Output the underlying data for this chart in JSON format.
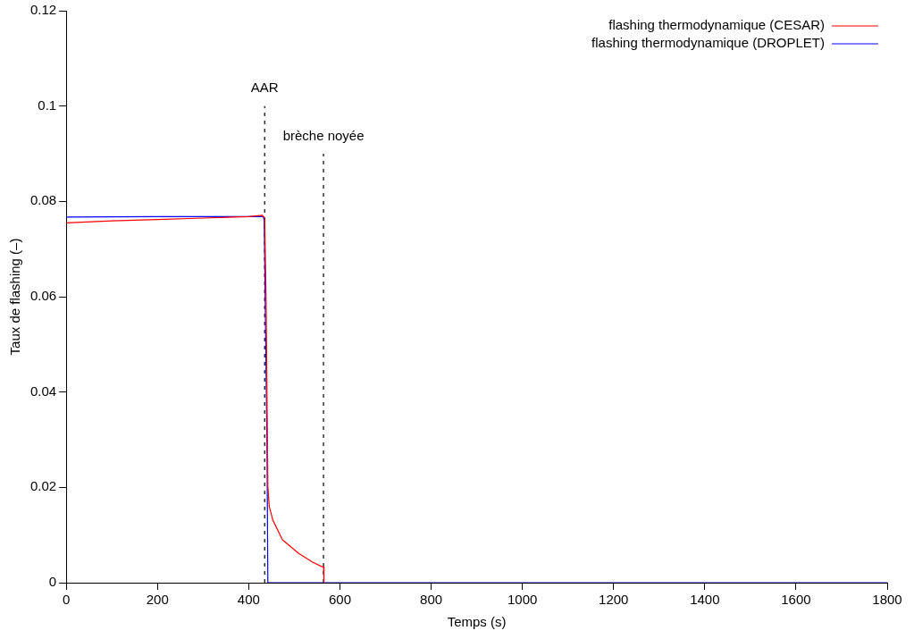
{
  "chart_data": {
    "type": "line",
    "xlabel": "Temps (s)",
    "ylabel": "Taux de flashing (–)",
    "xlim": [
      0,
      1800
    ],
    "xticks": [
      0,
      200,
      400,
      600,
      800,
      1000,
      1200,
      1400,
      1600,
      1800
    ],
    "ylim": [
      0,
      0.12
    ],
    "yticks": [
      0,
      0.02,
      0.04,
      0.06,
      0.08,
      0.1,
      0.12
    ],
    "grid": false,
    "legend": "top right",
    "marker": "none",
    "series": [
      {
        "name": "flashing thermodynamique (CESAR)",
        "color": "#ff0000",
        "x": [
          0,
          100,
          200,
          300,
          400,
          430,
          435,
          438,
          440,
          442,
          445,
          453,
          474,
          509,
          540,
          560,
          564,
          565
        ],
        "values": [
          0.0755,
          0.0759,
          0.0762,
          0.0765,
          0.0768,
          0.0771,
          0.0765,
          0.06,
          0.04,
          0.0203,
          0.016,
          0.0131,
          0.009,
          0.0062,
          0.0043,
          0.0034,
          0.0033,
          0
        ]
      },
      {
        "name": "flashing thermodynamique (DROPLET)",
        "color": "#0000ff",
        "x": [
          0,
          200,
          432,
          434,
          440,
          442,
          1800
        ],
        "values": [
          0.0767,
          0.0768,
          0.0768,
          0.076,
          0.03,
          0,
          0
        ]
      },
      {
        "type": "line",
        "line_style": "dashed",
        "color": "#000000",
        "x": [
          435,
          435
        ],
        "values": [
          0,
          0.1
        ]
      },
      {
        "type": "line",
        "line_style": "dashed",
        "color": "#000000",
        "x": [
          564,
          564
        ],
        "values": [
          0,
          0.09
        ]
      }
    ],
    "annotations": [
      {
        "text": "AAR",
        "x": 435,
        "y": 0.1
      },
      {
        "text": "brèche noyée",
        "x": 564,
        "y": 0.09
      }
    ]
  }
}
